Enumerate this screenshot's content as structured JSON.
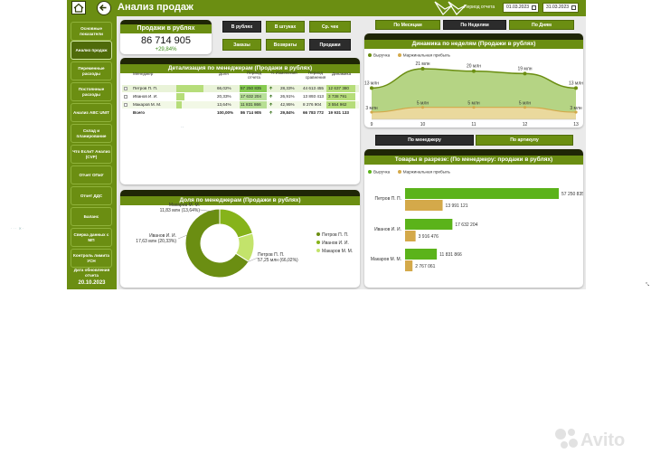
{
  "header": {
    "title": "Анализ продаж",
    "period_label": "Период отчета",
    "date_from": "01.03.2023",
    "date_to": "31.03.2023"
  },
  "sidebar": {
    "items": [
      "Основные показатели",
      "Анализ продаж",
      "Переменные расходы",
      "Постоянные расходы",
      "Анализ ABC UNIT",
      "Склад и планирование",
      "Что Если? Анализ (CVP)",
      "Отчет ОПиУ",
      "Отчет ДДС",
      "Баланс",
      "Сверка данных с МП",
      "Контроль лимита УСН"
    ],
    "active_index": 1,
    "update_label": "Дата обновления отчета",
    "update_date": "20.10.2023"
  },
  "kpi": {
    "title": "Продажи в рублях",
    "value": "86 714 905",
    "delta": "+29,84%"
  },
  "unit_buttons": [
    "В рублях",
    "В штуках",
    "Ср. чек"
  ],
  "metric_buttons": [
    "Заказы",
    "Возвраты",
    "Продажи"
  ],
  "metric_active": 2,
  "period_tabs": [
    "По Месяцам",
    "По Неделям",
    "По Дням"
  ],
  "period_active": 1,
  "breakdown_tabs": [
    "По менеджеру",
    "По артикулу"
  ],
  "breakdown_active": 0,
  "detail_table": {
    "title": "Детализация по менеджерам (Продажи в рублях)",
    "columns": [
      "Менеджер",
      "Доля",
      "Период отчета",
      "% Изменения",
      "Период сравнения",
      "Динамика"
    ],
    "rows": [
      {
        "name": "Петров П. П.",
        "share": "66,02%",
        "current": "57 250 835",
        "change": "28,33%",
        "previous": "44 613 455",
        "dynamics": "12 637 380",
        "share_value": 66.02,
        "change_value": 28.33
      },
      {
        "name": "Иванов И. И.",
        "share": "20,33%",
        "current": "17 632 204",
        "change": "26,91%",
        "previous": "13 893 413",
        "dynamics": "3 738 791",
        "share_value": 20.33,
        "change_value": 26.91
      },
      {
        "name": "Макаров М. М.",
        "share": "13,64%",
        "current": "11 831 866",
        "change": "42,95%",
        "previous": "8 276 904",
        "dynamics": "3 554 962",
        "share_value": 13.64,
        "change_value": 42.95
      }
    ],
    "total": {
      "name": "Всего",
      "share": "100,00%",
      "current": "86 714 905",
      "change": "29,84%",
      "previous": "66 783 772",
      "dynamics": "19 931 133"
    }
  },
  "weekly_chart": {
    "title": "Динамика по неделям (Продажи в рублях)",
    "legend": [
      "Выручка",
      "Маржинальная прибыль"
    ],
    "colors": {
      "revenue": "#6b8e12",
      "margin": "#d4a94a"
    }
  },
  "share_chart": {
    "title": "Доля по менеджерам (Продажи в рублях)",
    "labels": [
      {
        "line1": "Макаров М. М.",
        "line2": "11,83 млн (13,64%)"
      },
      {
        "line1": "Иванов И. И.",
        "line2": "17,63 млн (20,33%)"
      },
      {
        "line1": "Петров П. П.",
        "line2": "57,25 млн (66,02%)"
      }
    ],
    "legend": [
      "Петров П. П.",
      "Иванов И. И.",
      "Макаров М. М."
    ]
  },
  "goods_chart": {
    "title": "Товары в разрезе: (По менеджеру: продажи в рублях)",
    "legend": [
      "Выручка",
      "Маржинальная прибыль"
    ]
  },
  "chart_data": [
    {
      "type": "area",
      "title": "Динамика по неделям (Продажи в рублях)",
      "x": [
        9,
        10,
        11,
        12,
        13
      ],
      "series": [
        {
          "name": "Выручка",
          "values": [
            13,
            21,
            20,
            19,
            13
          ],
          "labels": [
            "13 млн",
            "21 млн",
            "20 млн",
            "19 млн",
            "13 млн"
          ]
        },
        {
          "name": "Маржинальная прибыль",
          "values": [
            3,
            5,
            5,
            5,
            3
          ],
          "labels": [
            "3 млн",
            "5 млн",
            "5 млн",
            "5 млн",
            "3 млн"
          ]
        }
      ],
      "legend": "top-left"
    },
    {
      "type": "pie",
      "title": "Доля по менеджерам (Продажи в рублях)",
      "categories": [
        "Петров П. П.",
        "Иванов И. И.",
        "Макаров М. М."
      ],
      "values": [
        57.25,
        17.63,
        11.83
      ],
      "colors": [
        "#6b8e12",
        "#86b31a",
        "#c3e36b"
      ],
      "legend": "right"
    },
    {
      "type": "bar",
      "title": "Товары в разрезе: (По менеджеру: продажи в рублях)",
      "categories": [
        "Петров П. П.",
        "Иванов И. И.",
        "Макаров М. М."
      ],
      "series": [
        {
          "name": "Выручка",
          "values": [
            57250835,
            17632204,
            11831866
          ],
          "labels": [
            "57 250 835",
            "17 632 204",
            "11 831 866"
          ]
        },
        {
          "name": "Маржинальная прибыль",
          "values": [
            13991121,
            3916476,
            2767061
          ],
          "labels": [
            "13 991 121",
            "3 916 476",
            "2 767 061"
          ]
        }
      ],
      "colors": [
        "#5bb31a",
        "#d4a94a"
      ],
      "legend": "top-left"
    }
  ]
}
